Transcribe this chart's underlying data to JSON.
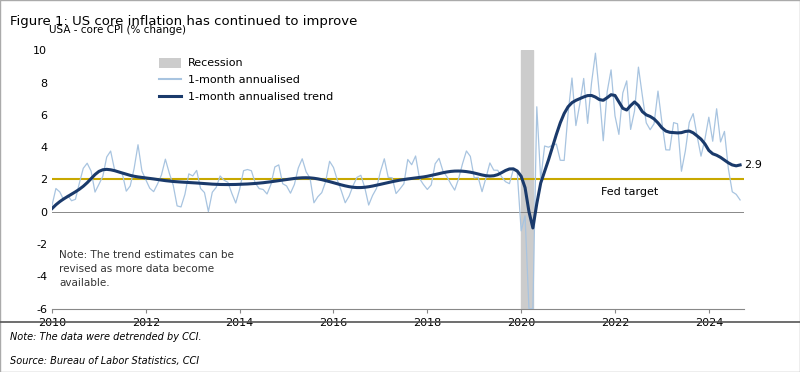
{
  "title": "Figure 1: US core inflation has continued to improve",
  "ylabel": "USA - core CPI (% change)",
  "ylim": [
    -6,
    10
  ],
  "yticks": [
    -6,
    -4,
    -2,
    0,
    2,
    4,
    6,
    8,
    10
  ],
  "xlim": [
    2010.0,
    2024.75
  ],
  "xticks": [
    2010,
    2012,
    2014,
    2016,
    2018,
    2020,
    2022,
    2024
  ],
  "fed_target": 2.0,
  "fed_target_label": "Fed target",
  "last_trend_value": "2.9",
  "recession_start": 2020.0,
  "recession_end": 2020.25,
  "note1": "Note: The data were detrended by CCI.",
  "note2": "Source: Bureau of Labor Statistics, CCI",
  "chart_note": "Note: The trend estimates can be\nrevised as more data become\navailable.",
  "light_line_color": "#a8c4e0",
  "trend_line_color": "#1a3a6b",
  "fed_target_color": "#c8a800",
  "recession_color": "#cccccc",
  "title_bg_color": "#dce6f1",
  "background_color": "#ffffff"
}
